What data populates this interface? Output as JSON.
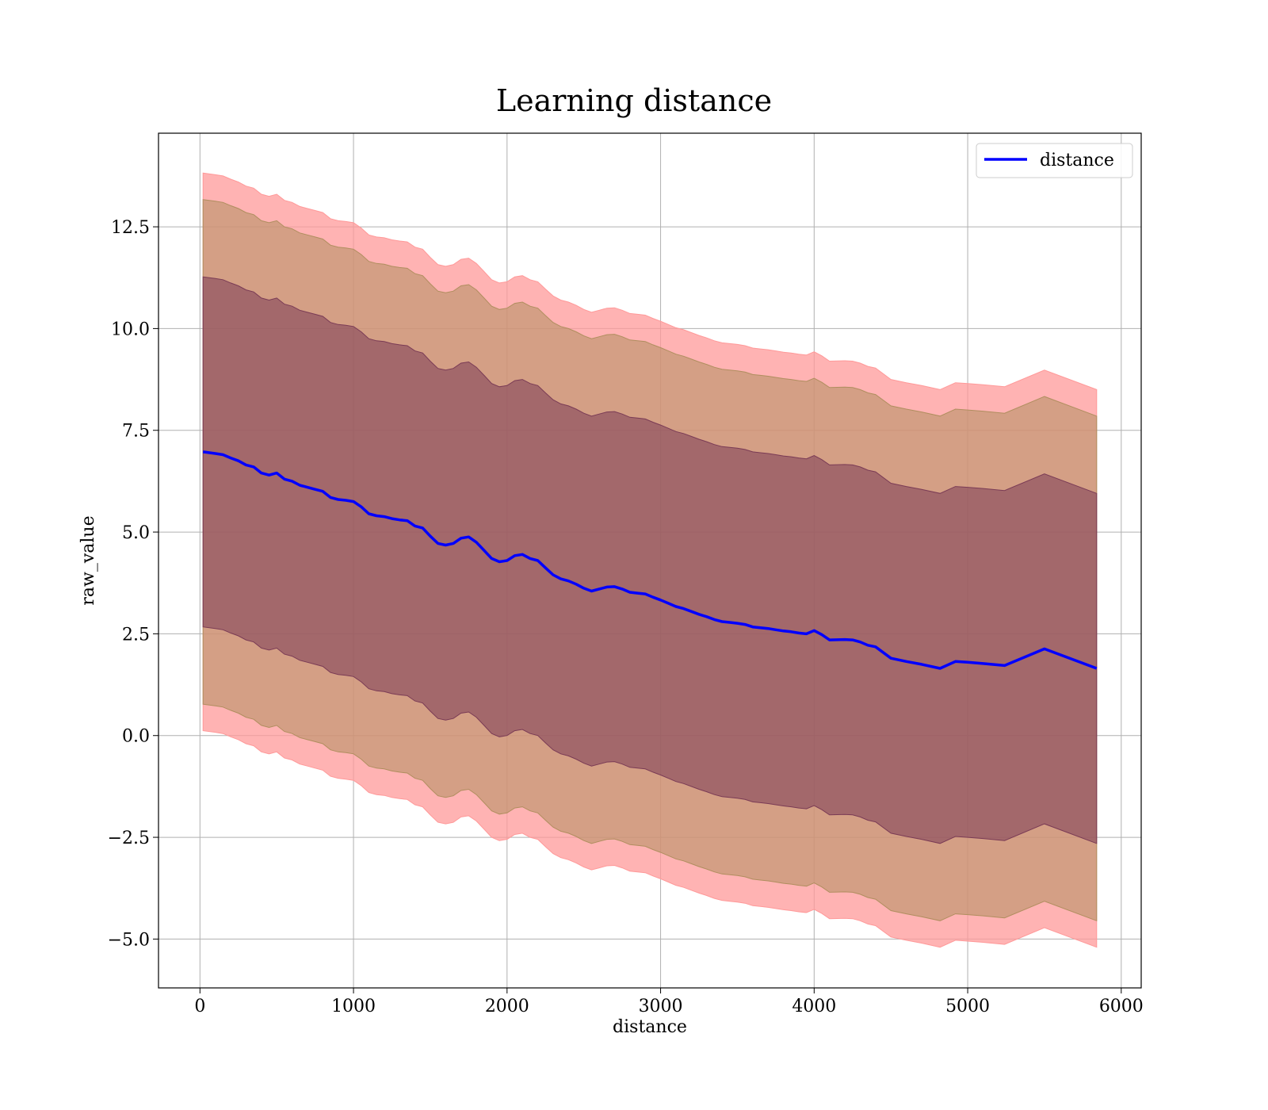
{
  "chart_data": {
    "type": "line",
    "title": "Learning distance",
    "xlabel": "distance",
    "ylabel": "raw_value",
    "xlim": [
      -270,
      6130
    ],
    "ylim": [
      -6.2,
      14.8
    ],
    "xticks": [
      0,
      1000,
      2000,
      3000,
      4000,
      5000,
      6000
    ],
    "xtick_labels": [
      "0",
      "1000",
      "2000",
      "3000",
      "4000",
      "5000",
      "6000"
    ],
    "yticks": [
      -5.0,
      -2.5,
      0.0,
      2.5,
      5.0,
      7.5,
      10.0,
      12.5
    ],
    "ytick_labels": [
      "−5.0",
      "−2.5",
      "0.0",
      "2.5",
      "5.0",
      "7.5",
      "10.0",
      "12.5"
    ],
    "grid": true,
    "legend": {
      "position": "top-right",
      "entries": [
        {
          "label": "distance",
          "color": "#0000ff"
        }
      ]
    },
    "series": [
      {
        "name": "distance",
        "color": "#0000ff",
        "x": [
          20,
          100,
          150,
          200,
          250,
          300,
          350,
          400,
          450,
          500,
          550,
          600,
          650,
          700,
          750,
          800,
          850,
          900,
          950,
          1000,
          1050,
          1100,
          1150,
          1200,
          1250,
          1300,
          1350,
          1400,
          1450,
          1500,
          1550,
          1600,
          1650,
          1700,
          1750,
          1800,
          1850,
          1900,
          1950,
          2000,
          2050,
          2100,
          2150,
          2200,
          2250,
          2300,
          2350,
          2400,
          2450,
          2500,
          2550,
          2600,
          2650,
          2700,
          2750,
          2800,
          2850,
          2900,
          2950,
          3000,
          3050,
          3100,
          3150,
          3200,
          3250,
          3300,
          3350,
          3400,
          3450,
          3500,
          3550,
          3600,
          3650,
          3700,
          3750,
          3800,
          3850,
          3900,
          3950,
          4000,
          4050,
          4100,
          4200,
          4250,
          4300,
          4350,
          4400,
          4500,
          4600,
          4700,
          4820,
          4920,
          5000,
          5100,
          5240,
          5500,
          5840
        ],
        "y": [
          6.97,
          6.93,
          6.9,
          6.82,
          6.75,
          6.65,
          6.6,
          6.45,
          6.4,
          6.45,
          6.3,
          6.25,
          6.15,
          6.1,
          6.05,
          6.0,
          5.85,
          5.8,
          5.78,
          5.75,
          5.62,
          5.45,
          5.4,
          5.38,
          5.33,
          5.3,
          5.28,
          5.15,
          5.1,
          4.9,
          4.72,
          4.68,
          4.72,
          4.85,
          4.88,
          4.75,
          4.55,
          4.35,
          4.27,
          4.3,
          4.42,
          4.45,
          4.35,
          4.3,
          4.12,
          3.95,
          3.85,
          3.8,
          3.72,
          3.62,
          3.55,
          3.6,
          3.65,
          3.66,
          3.6,
          3.52,
          3.5,
          3.48,
          3.4,
          3.33,
          3.25,
          3.17,
          3.12,
          3.05,
          2.98,
          2.92,
          2.85,
          2.8,
          2.78,
          2.76,
          2.73,
          2.67,
          2.65,
          2.63,
          2.6,
          2.57,
          2.55,
          2.52,
          2.5,
          2.58,
          2.48,
          2.35,
          2.36,
          2.35,
          2.3,
          2.22,
          2.18,
          1.9,
          1.82,
          1.75,
          1.65,
          1.82,
          1.8,
          1.77,
          1.72,
          2.13,
          1.65
        ]
      }
    ],
    "bands": [
      {
        "name": "",
        "color": "#ff9999",
        "opacity": 0.75,
        "offset": 6.85
      },
      {
        "name": "",
        "color": "#b08e5f",
        "opacity": 0.55,
        "offset": 6.2
      },
      {
        "name": "",
        "color": "#7a3b55",
        "opacity": 0.55,
        "offset": 4.3
      }
    ]
  }
}
